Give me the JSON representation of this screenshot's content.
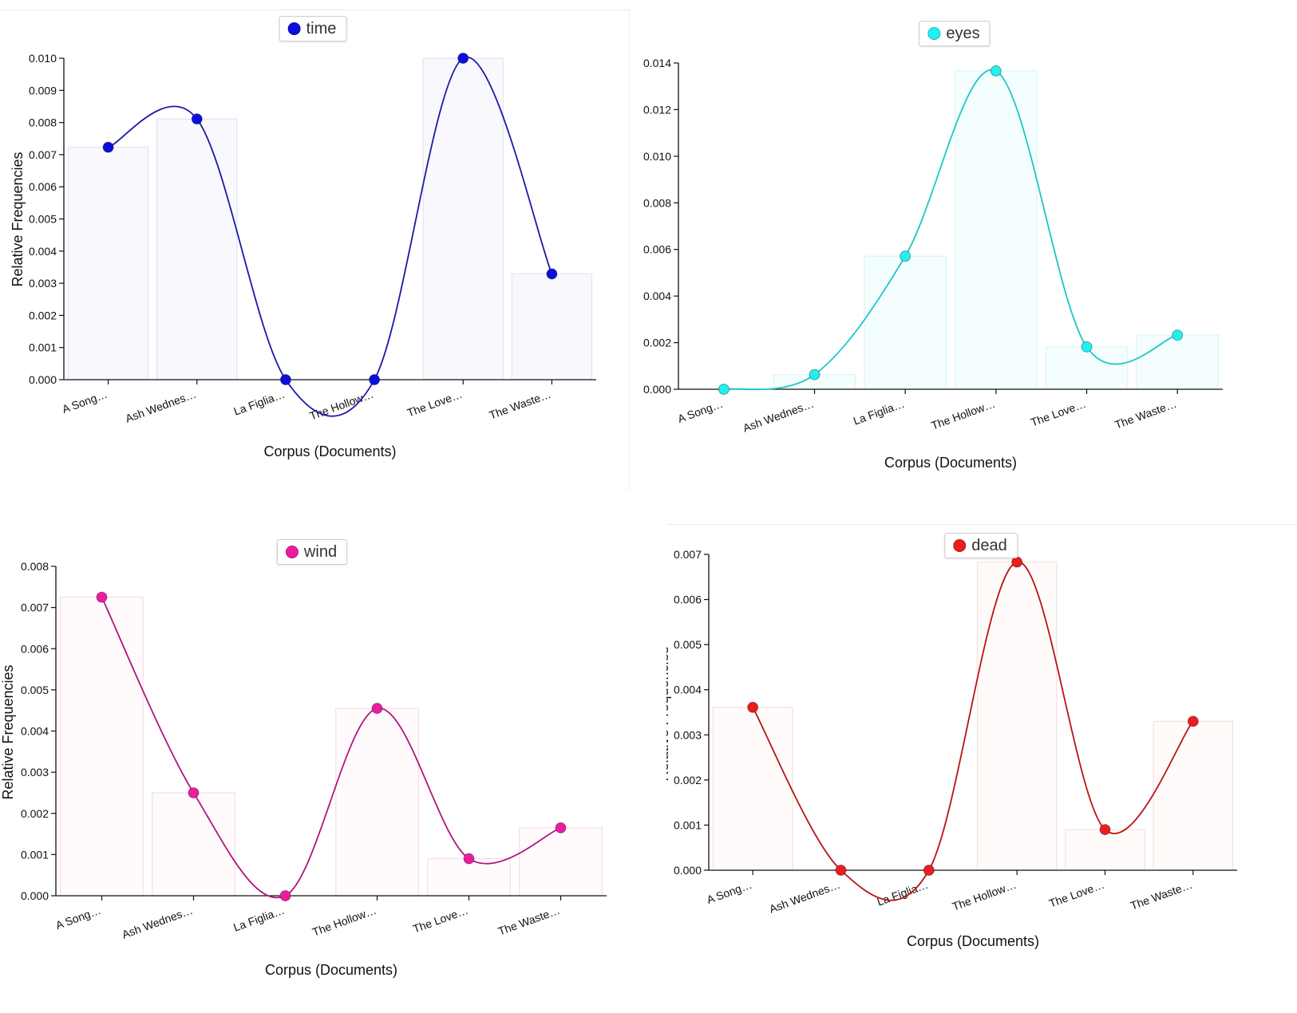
{
  "chart_data": [
    {
      "type": "bar",
      "title": "",
      "categories": [
        "A Song…",
        "Ash Wednes…",
        "La Figlia…",
        "The Hollow…",
        "The Love…",
        "The Waste…"
      ],
      "series": [
        {
          "name": "time",
          "values": [
            0.00723,
            0.00811,
            0.0,
            0.0,
            0.01,
            0.00329
          ]
        }
      ],
      "xlabel": "Corpus (Documents)",
      "ylabel": "Relative Frequencies",
      "ylim": [
        0,
        0.01
      ],
      "yticks": [
        "0.000",
        "0.001",
        "0.002",
        "0.003",
        "0.004",
        "0.005",
        "0.006",
        "0.007",
        "0.008",
        "0.009",
        "0.010"
      ],
      "legend": "top-center",
      "grid": false,
      "colors": {
        "line": "#1a1aa6",
        "point": "#0d0de0",
        "bar_fill": "#f9f9fd",
        "bar_stroke": "#e2e2f4"
      }
    },
    {
      "type": "bar",
      "title": "",
      "categories": [
        "A Song…",
        "Ash Wednes…",
        "La Figlia…",
        "The Hollow…",
        "The Love…",
        "The Waste…"
      ],
      "series": [
        {
          "name": "eyes",
          "values": [
            0.0,
            0.00063,
            0.00571,
            0.01366,
            0.00182,
            0.00232
          ]
        }
      ],
      "xlabel": "Corpus (Documents)",
      "ylabel": "Relative Frequencies",
      "ylim": [
        0,
        0.014
      ],
      "yticks": [
        "0.000",
        "0.002",
        "0.004",
        "0.006",
        "0.008",
        "0.010",
        "0.012",
        "0.014"
      ],
      "legend": "top-center",
      "grid": false,
      "colors": {
        "line": "#1cc6c6",
        "point": "#22f0f0",
        "bar_fill": "#f5fefe",
        "bar_stroke": "#d8f6f6"
      }
    },
    {
      "type": "bar",
      "title": "",
      "categories": [
        "A Song…",
        "Ash Wednes…",
        "La Figlia…",
        "The Hollow…",
        "The Love…",
        "The Waste…"
      ],
      "series": [
        {
          "name": "wind",
          "values": [
            0.00725,
            0.0025,
            0.0,
            0.00455,
            0.0009,
            0.00165
          ]
        }
      ],
      "xlabel": "Corpus (Documents)",
      "ylabel": "Relative Frequencies",
      "ylim": [
        0,
        0.008
      ],
      "yticks": [
        "0.000",
        "0.001",
        "0.002",
        "0.003",
        "0.004",
        "0.005",
        "0.006",
        "0.007",
        "0.008"
      ],
      "legend": "top-center",
      "grid": false,
      "colors": {
        "line": "#b0157c",
        "point": "#ec1ca0",
        "bar_fill": "#fffbfd",
        "bar_stroke": "#f8dbe9"
      }
    },
    {
      "type": "bar",
      "title": "",
      "categories": [
        "A Song…",
        "Ash Wednes…",
        "La Figlia…",
        "The Hollow…",
        "The Love…",
        "The Waste…"
      ],
      "series": [
        {
          "name": "dead",
          "values": [
            0.00361,
            0.0,
            0.0,
            0.00683,
            0.0009,
            0.0033
          ]
        }
      ],
      "xlabel": "Corpus (Documents)",
      "ylabel": "Relative Frequencies",
      "ylim": [
        0,
        0.007
      ],
      "yticks": [
        "0.000",
        "0.001",
        "0.002",
        "0.003",
        "0.004",
        "0.005",
        "0.006",
        "0.007"
      ],
      "legend": "top-center",
      "grid": false,
      "colors": {
        "line": "#b81414",
        "point": "#ee1c1c",
        "bar_fill": "#fffbfb",
        "bar_stroke": "#f8dede"
      }
    }
  ]
}
